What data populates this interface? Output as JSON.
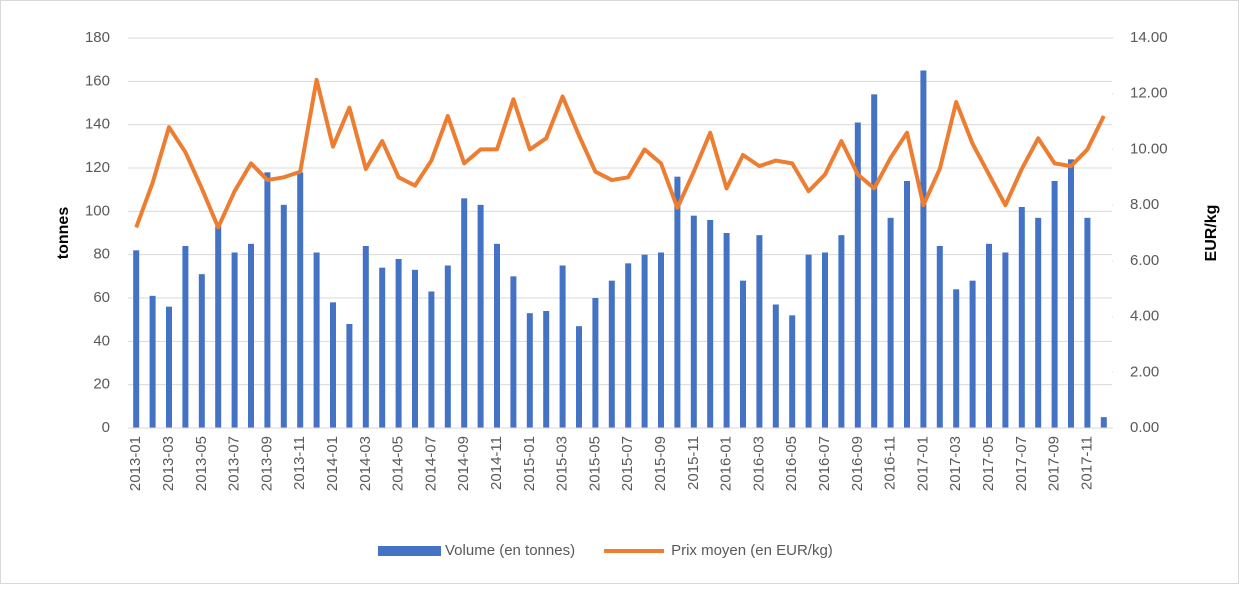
{
  "chart_data": {
    "type": "bar_line",
    "y_label": "tonnes",
    "y2_label": "EUR/kg",
    "legend": "bottom",
    "grid": true,
    "categories": [
      "2013-01",
      null,
      "2013-03",
      null,
      "2013-05",
      null,
      "2013-07",
      null,
      "2013-09",
      null,
      "2013-11",
      null,
      "2014-01",
      null,
      "2014-03",
      null,
      "2014-05",
      null,
      "2014-07",
      null,
      "2014-09",
      null,
      "2014-11",
      null,
      "2015-01",
      null,
      "2015-03",
      null,
      "2015-05",
      null,
      "2015-07",
      null,
      "2015-09",
      null,
      "2015-11",
      null,
      "2016-01",
      null,
      "2016-03",
      null,
      "2016-05",
      null,
      "2016-07",
      null,
      "2016-09",
      null,
      "2016-11",
      null,
      "2017-01",
      null,
      "2017-03",
      null,
      "2017-05",
      null,
      "2017-07",
      null,
      "2017-09",
      null,
      "2017-11",
      null
    ],
    "series": [
      {
        "name": "Volume (en tonnes)",
        "type": "bar",
        "color": "#4472c4",
        "axis": "y",
        "values": [
          82,
          61,
          56,
          84,
          71,
          93,
          81,
          85,
          118,
          103,
          118,
          81,
          58,
          48,
          84,
          74,
          78,
          73,
          63,
          75,
          106,
          103,
          85,
          70,
          53,
          54,
          75,
          47,
          60,
          68,
          76,
          80,
          81,
          116,
          98,
          96,
          90,
          68,
          89,
          57,
          52,
          80,
          81,
          89,
          141,
          154,
          97,
          114,
          165,
          84,
          64,
          68,
          85,
          81,
          102,
          97,
          114,
          124,
          97,
          5
        ]
      },
      {
        "name": "Prix moyen (en EUR/kg)",
        "type": "line",
        "color": "#ed7d31",
        "axis": "y2",
        "values": [
          7.2,
          8.8,
          10.8,
          9.9,
          8.6,
          7.2,
          8.5,
          9.5,
          8.9,
          9.0,
          9.2,
          12.5,
          10.1,
          11.5,
          9.3,
          10.3,
          9.0,
          8.7,
          9.6,
          11.2,
          9.5,
          10.0,
          10.0,
          11.8,
          10.0,
          10.4,
          11.9,
          10.5,
          9.2,
          8.9,
          9.0,
          10.0,
          9.5,
          7.9,
          9.2,
          10.6,
          8.6,
          9.8,
          9.4,
          9.6,
          9.5,
          8.5,
          9.1,
          10.3,
          9.1,
          8.6,
          9.7,
          10.6,
          8.0,
          9.3,
          11.7,
          10.2,
          9.1,
          8.0,
          9.3,
          10.4,
          9.5,
          9.4,
          10.0,
          11.2
        ]
      }
    ],
    "ylim": [
      0,
      180
    ],
    "yticks": [
      0,
      20,
      40,
      60,
      80,
      100,
      120,
      140,
      160,
      180
    ],
    "y2lim": [
      0,
      14
    ],
    "y2ticks": [
      {
        "value": 0,
        "label": "0.00"
      },
      {
        "value": 2,
        "label": "2.00"
      },
      {
        "value": 4,
        "label": "4.00"
      },
      {
        "value": 6,
        "label": "6.00"
      },
      {
        "value": 8,
        "label": "8.00"
      },
      {
        "value": 10,
        "label": "10.00"
      },
      {
        "value": 12,
        "label": "12.00"
      },
      {
        "value": 14,
        "label": "14.00"
      }
    ]
  }
}
